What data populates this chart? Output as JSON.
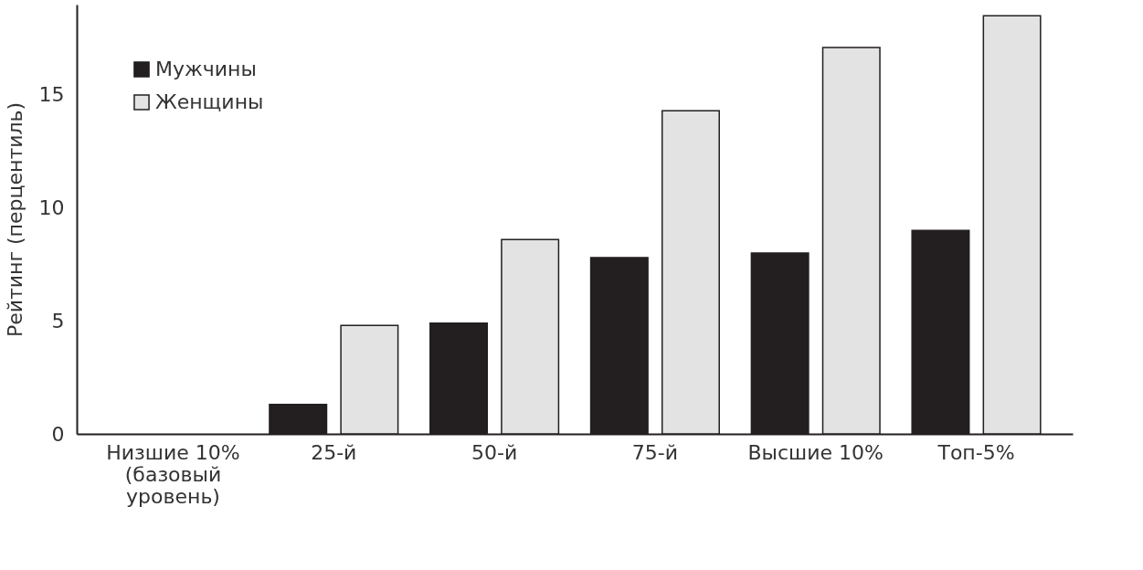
{
  "chart_data": {
    "type": "bar",
    "ylabel": "Рейтинг (перцентиль)",
    "categories": [
      "Низшие 10%\n(базовый\nуровень)",
      "25-й",
      "50-й",
      "75-й",
      "Высшие 10%",
      "Топ-5%"
    ],
    "series": [
      {
        "name": "Мужчины",
        "color": "#231f20",
        "values": [
          null,
          1.3,
          4.9,
          7.8,
          8.0,
          9.0
        ]
      },
      {
        "name": "Женщины",
        "color": "#e3e3e3",
        "values": [
          null,
          4.8,
          8.6,
          14.3,
          17.1,
          18.5
        ]
      }
    ],
    "ylim": [
      0,
      19
    ],
    "yticks": [
      0,
      5,
      10,
      15
    ],
    "grid": false,
    "legend": "top left"
  }
}
